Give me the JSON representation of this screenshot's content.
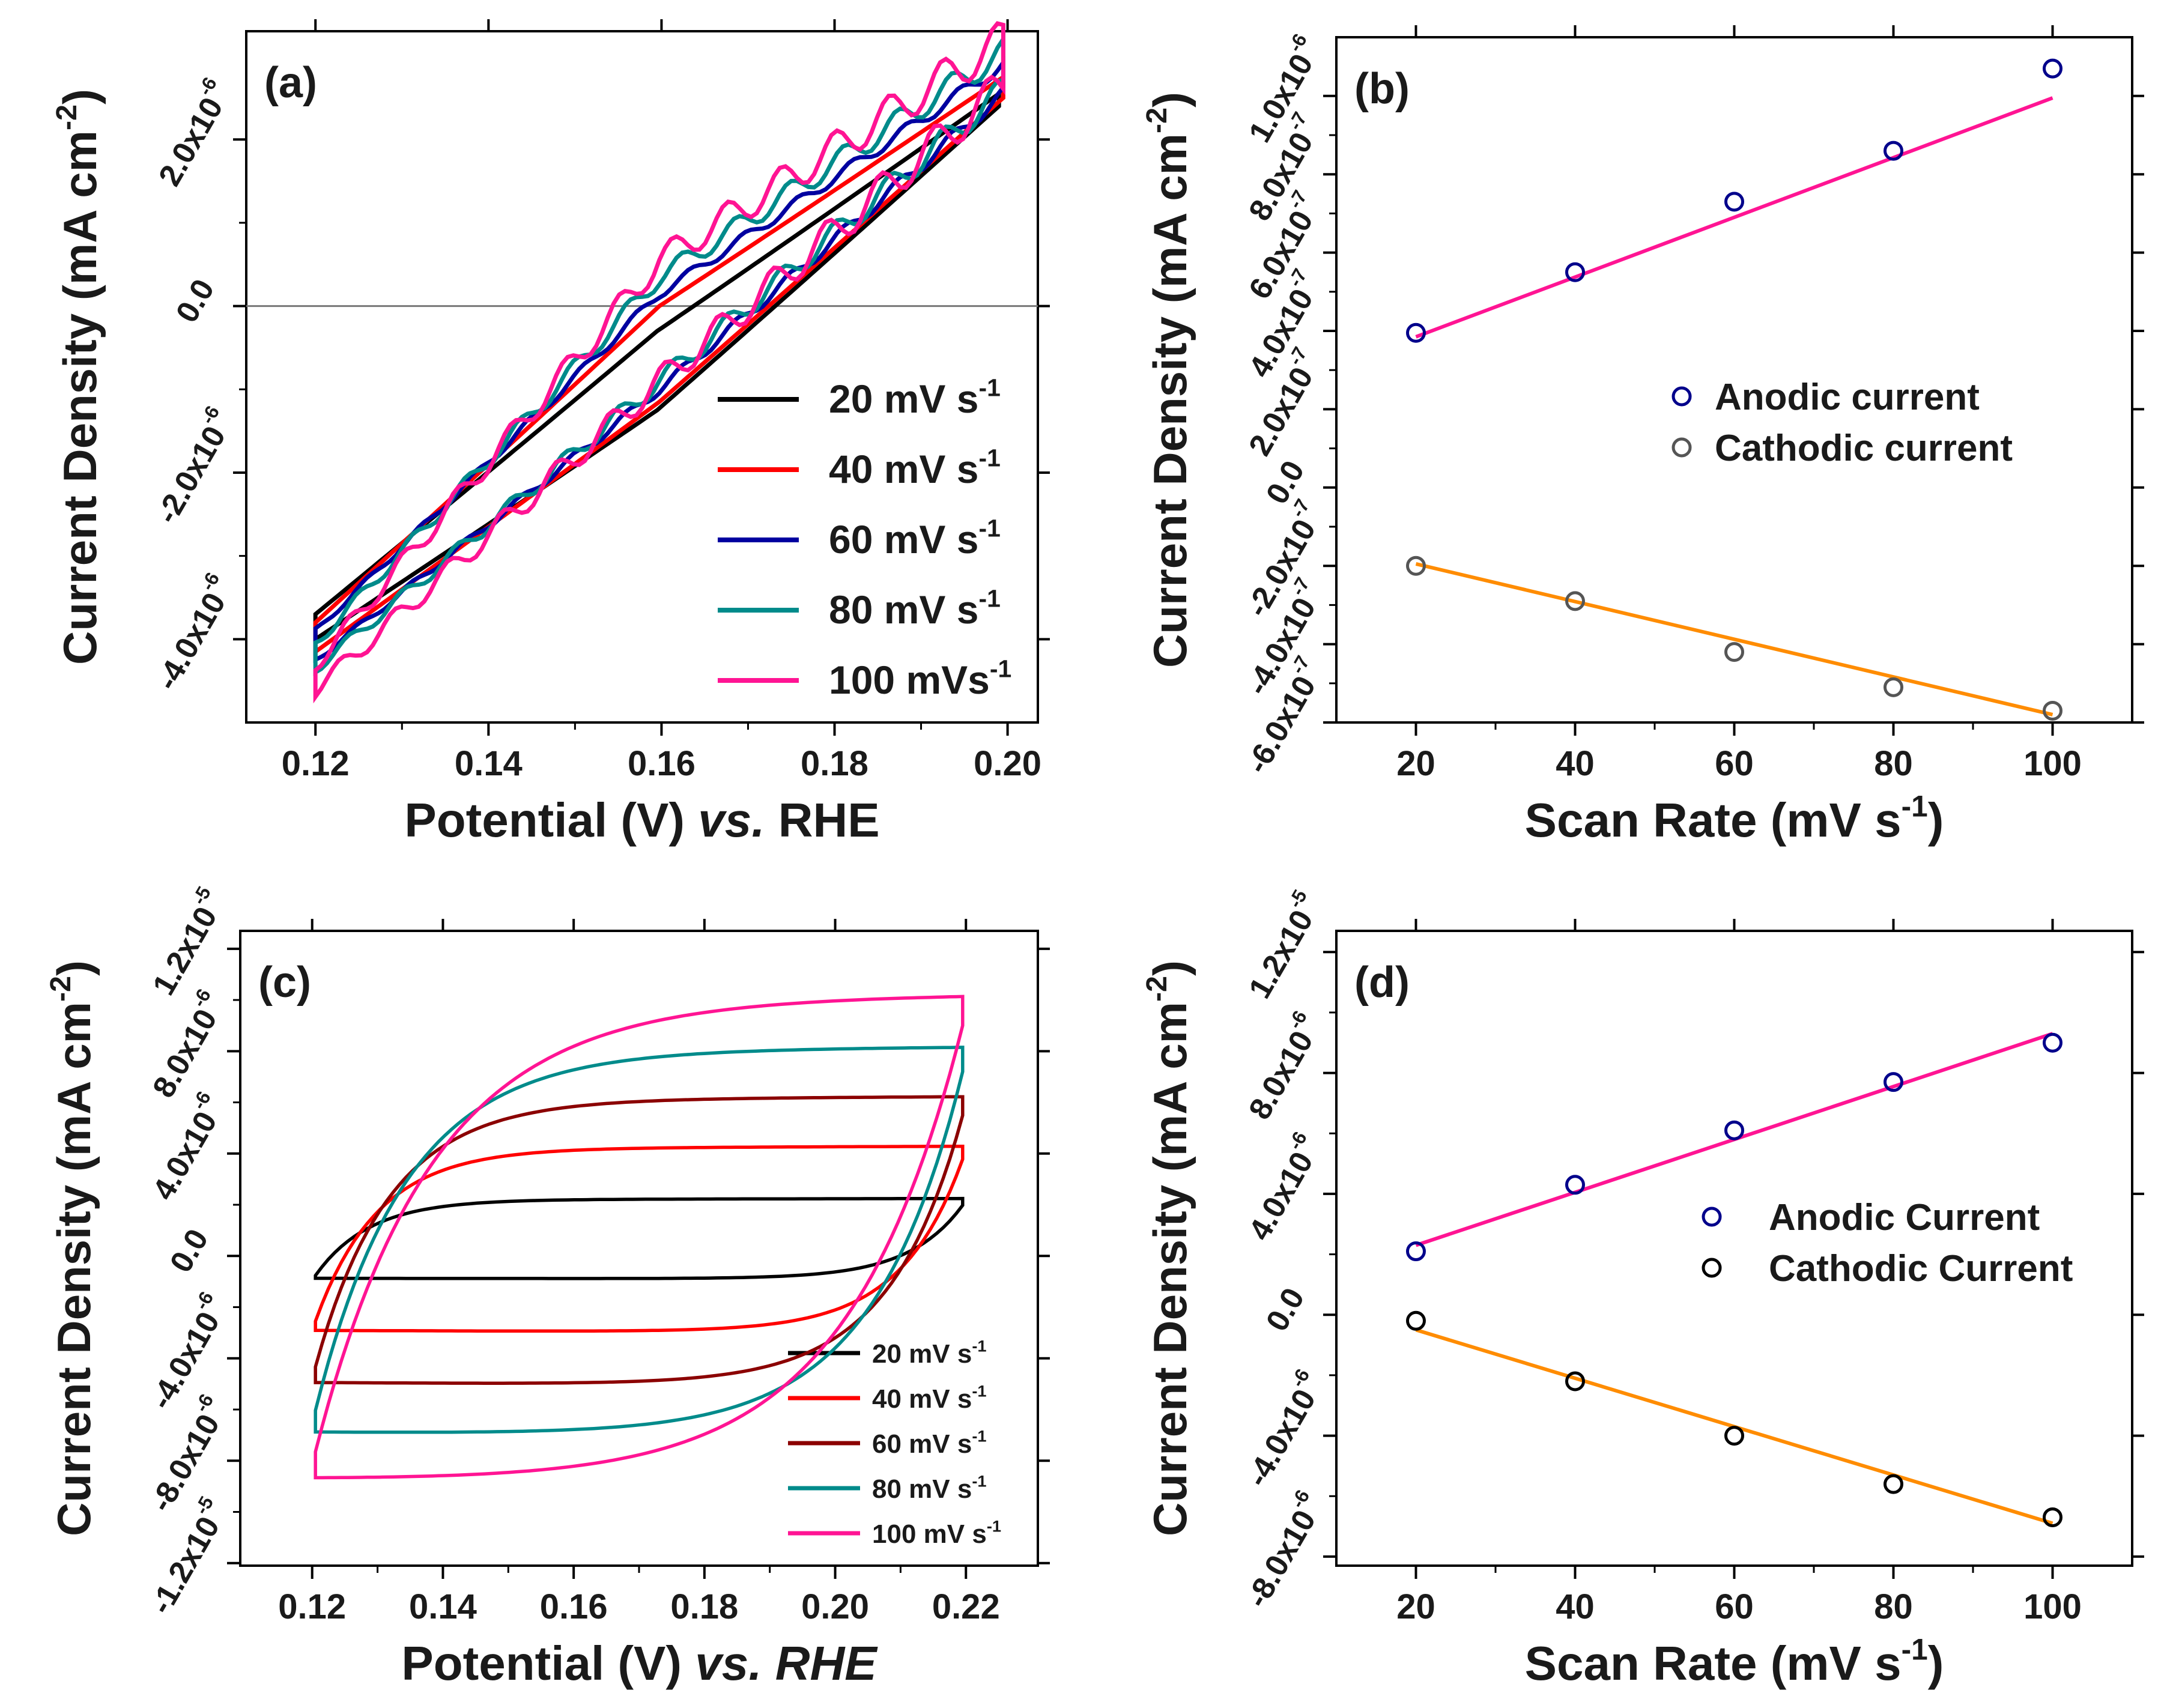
{
  "chart_data": [
    {
      "id": "a",
      "type": "line",
      "panel_label": "(a)",
      "xlabel": "Potential (V) vs. RHE",
      "xlabel_prefix": "Potential (V) ",
      "xlabel_italic": "vs.",
      "xlabel_suffix": " RHE",
      "ylabel": "Current Density (mA cm-2)",
      "xlim": [
        0.112,
        0.2035
      ],
      "ylim": [
        -5e-06,
        3.3e-06
      ],
      "xticks": [
        0.12,
        0.14,
        0.16,
        0.18,
        0.2
      ],
      "xtick_labels": [
        "0.12",
        "0.14",
        "0.16",
        "0.18",
        "0.20"
      ],
      "yticks": [
        -4e-06,
        -2e-06,
        0.0,
        2e-06
      ],
      "ytick_labels": [
        "-4.0x10-6",
        "-2.0x10-6",
        "0.0",
        "2.0x10-6"
      ],
      "zero_line": true,
      "legend_position": "lower-right",
      "series": [
        {
          "name": "20 mV s-1",
          "color": "#000000",
          "x_range": [
            0.12,
            0.199
          ],
          "upper_y": [
            -3.7e-06,
            -2.5e-07,
            2.55e-06
          ],
          "lower_y": [
            -4e-06,
            -1.2e-06,
            2.4e-06
          ]
        },
        {
          "name": "40 mV s-1",
          "color": "#ff0000",
          "x_range": [
            0.12,
            0.1995
          ],
          "upper_y": [
            -3.8e-06,
            5e-08,
            2.75e-06
          ],
          "lower_y": [
            -4.15e-06,
            -1.1e-06,
            2.5e-06
          ]
        },
        {
          "name": "60 mV s-1",
          "color": "#0000a0",
          "x_range": [
            0.12,
            0.1995
          ],
          "upper_y": [
            -3.9e-06,
            2e-07,
            2.9e-06
          ],
          "lower_y": [
            -4.25e-06,
            -9.5e-07,
            2.55e-06
          ]
        },
        {
          "name": "80 mV s-1",
          "color": "#008b8b",
          "x_range": [
            0.12,
            0.1995
          ],
          "upper_y": [
            -4.05e-06,
            4e-07,
            3.05e-06
          ],
          "lower_y": [
            -4.35e-06,
            -8.5e-07,
            2.6e-06
          ]
        },
        {
          "name": "100 mVs-1",
          "color": "#ff1493",
          "x_range": [
            0.12,
            0.1995
          ],
          "upper_y": [
            -4.3e-06,
            6e-07,
            3.2e-06
          ],
          "lower_y": [
            -4.6e-06,
            -8.5e-07,
            2.65e-06
          ]
        }
      ]
    },
    {
      "id": "b",
      "type": "scatter",
      "panel_label": "(b)",
      "xlabel": "Scan Rate (mV s-1)",
      "ylabel": "Current Density (mA cm-2)",
      "xlim": [
        10,
        110
      ],
      "ylim": [
        -6e-07,
        1.15e-06
      ],
      "xticks": [
        20,
        40,
        60,
        80,
        100
      ],
      "xtick_labels": [
        "20",
        "40",
        "60",
        "80",
        "100"
      ],
      "yticks": [
        -6e-07,
        -4e-07,
        -2e-07,
        0.0,
        2e-07,
        4e-07,
        6e-07,
        8e-07,
        1e-06
      ],
      "ytick_labels": [
        "-6.0x10-7",
        "-4.0x10-7",
        "-2.0x10-7",
        "0.0",
        "2.0x10-7",
        "4.0x10-7",
        "6.0x10-7",
        "8.0x10-7",
        "1.0x10-6"
      ],
      "legend_position": "center-right",
      "series": [
        {
          "name": "Anodic current",
          "marker_color": "#00008b",
          "line_color": "#ff1493",
          "x": [
            20,
            40,
            60,
            80,
            100
          ],
          "y": [
            3.95e-07,
            5.5e-07,
            7.3e-07,
            8.6e-07,
            1.07e-06
          ],
          "fit": [
            3.85e-07,
            9.95e-07
          ]
        },
        {
          "name": "Cathodic current",
          "marker_color": "#555555",
          "line_color": "#ff8c00",
          "x": [
            20,
            40,
            60,
            80,
            100
          ],
          "y": [
            -2e-07,
            -2.9e-07,
            -4.2e-07,
            -5.1e-07,
            -5.7e-07
          ],
          "fit": [
            -1.95e-07,
            -5.8e-07
          ]
        }
      ]
    },
    {
      "id": "c",
      "type": "line",
      "panel_label": "(c)",
      "xlabel": "Potential (V) vs. RHE",
      "xlabel_prefix": "Potential (V) ",
      "xlabel_italic": "vs. RHE",
      "xlabel_suffix": "",
      "ylabel": "Current Density (mA cm-2)",
      "xlim": [
        0.109,
        0.231
      ],
      "ylim": [
        -1.21e-05,
        1.27e-05
      ],
      "xticks": [
        0.12,
        0.14,
        0.16,
        0.18,
        0.2,
        0.22
      ],
      "xtick_labels": [
        "0.12",
        "0.14",
        "0.16",
        "0.18",
        "0.20",
        "0.22"
      ],
      "yticks": [
        -1.2e-05,
        -8e-06,
        -4e-06,
        0.0,
        4e-06,
        8e-06,
        1.2e-05
      ],
      "ytick_labels": [
        "-1.2x10-5",
        "-8.0x10-6",
        "-4.0x10-6",
        "0.0",
        "4.0x10-6",
        "8.0x10-6",
        "1.2x10-5"
      ],
      "legend_position": "lower-right",
      "series": [
        {
          "name": "20 mV s-1",
          "color": "#000000",
          "x_range": [
            0.1205,
            0.2195
          ],
          "upper_y": 2.2e-06,
          "lower_y": -9e-07
        },
        {
          "name": "40 mV s-1",
          "color": "#ff0000",
          "x_range": [
            0.1205,
            0.2195
          ],
          "upper_y": 4.2e-06,
          "lower_y": -3e-06
        },
        {
          "name": "60 mV s-1",
          "color": "#8b0000",
          "x_range": [
            0.1205,
            0.2195
          ],
          "upper_y": 6.1e-06,
          "lower_y": -5.1e-06
        },
        {
          "name": "80 mV s-1",
          "color": "#008b8b",
          "x_range": [
            0.1205,
            0.2195
          ],
          "upper_y": 8e-06,
          "lower_y": -7.1e-06
        },
        {
          "name": "100 mV s-1",
          "color": "#ff1493",
          "x_range": [
            0.1205,
            0.2195
          ],
          "upper_y": 1e-05,
          "lower_y": -9e-06
        }
      ]
    },
    {
      "id": "d",
      "type": "scatter",
      "panel_label": "(d)",
      "xlabel": "Scan Rate (mV s-1)",
      "ylabel": "Current Density (mA cm-2)",
      "xlim": [
        10,
        110
      ],
      "ylim": [
        -8.3e-06,
        1.27e-05
      ],
      "xticks": [
        20,
        40,
        60,
        80,
        100
      ],
      "xtick_labels": [
        "20",
        "40",
        "60",
        "80",
        "100"
      ],
      "yticks": [
        -8e-06,
        -4e-06,
        0.0,
        4e-06,
        8e-06,
        1.2e-05
      ],
      "ytick_labels": [
        "-8.0x10-6",
        "-4.0x10-6",
        "0.0",
        "4.0x10-6",
        "8.0x10-6",
        "1.2x10-5"
      ],
      "legend_position": "center-right",
      "series": [
        {
          "name": "Anodic Current",
          "marker_color": "#00008b",
          "line_color": "#ff1493",
          "x": [
            20,
            40,
            60,
            80,
            100
          ],
          "y": [
            2.1e-06,
            4.3e-06,
            6.1e-06,
            7.7e-06,
            9e-06
          ],
          "fit": [
            2.3e-06,
            9.3e-06
          ]
        },
        {
          "name": "Cathodic Current",
          "marker_color": "#000000",
          "line_color": "#ff8c00",
          "x": [
            20,
            40,
            60,
            80,
            100
          ],
          "y": [
            -2e-07,
            -2.2e-06,
            -4e-06,
            -5.6e-06,
            -6.7e-06
          ],
          "fit": [
            -5e-07,
            -6.9e-06
          ]
        }
      ]
    }
  ]
}
